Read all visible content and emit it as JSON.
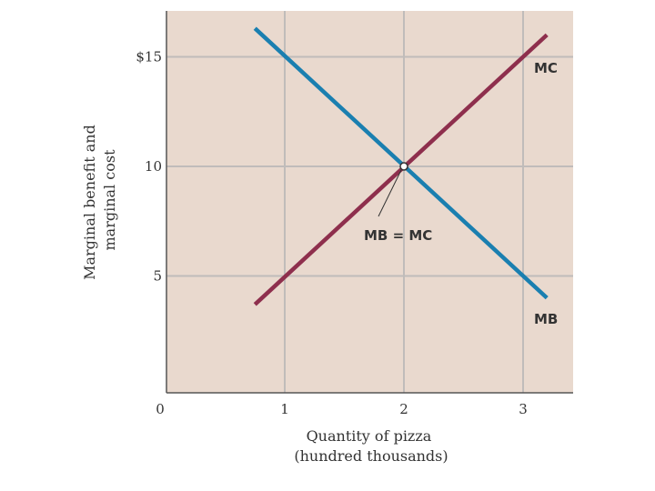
{
  "chart_data": {
    "type": "line",
    "xlabel": [
      "Quantity of pizza",
      "(hundred thousands)"
    ],
    "ylabel": [
      "Marginal benefit and",
      "marginal cost"
    ],
    "xlim": [
      0,
      3.4
    ],
    "ylim": [
      0,
      17
    ],
    "x_ticks": [
      {
        "value": 0,
        "label": "0"
      },
      {
        "value": 1,
        "label": "1"
      },
      {
        "value": 2,
        "label": "2"
      },
      {
        "value": 3,
        "label": "3"
      }
    ],
    "y_ticks": [
      {
        "value": 5,
        "label": "5"
      },
      {
        "value": 10,
        "label": "10"
      },
      {
        "value": 15,
        "label": "$15"
      }
    ],
    "grid": true,
    "series": [
      {
        "name": "MB",
        "color": "#1a7fb0",
        "x": [
          0.75,
          3.2
        ],
        "y": [
          16.3,
          4.0
        ]
      },
      {
        "name": "MC",
        "color": "#8e2f4d",
        "x": [
          0.75,
          3.2
        ],
        "y": [
          3.7,
          16.0
        ]
      }
    ],
    "annotation": {
      "text": "MB = MC",
      "x": 2,
      "y": 10
    },
    "colors": {
      "background": "#e9d9ce",
      "grid": "#c0bcba",
      "axis": "#555555"
    }
  }
}
